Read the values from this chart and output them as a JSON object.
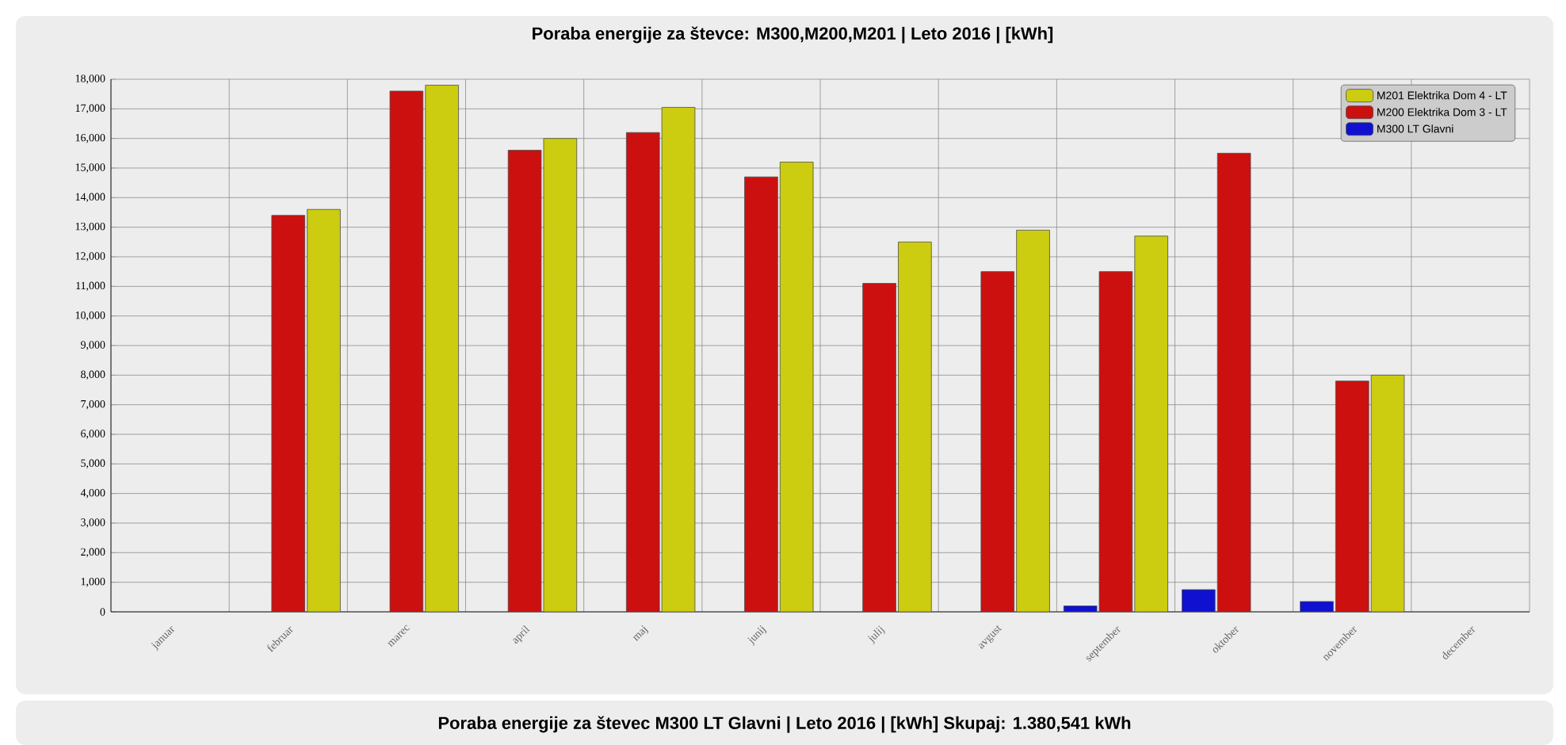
{
  "chart_data": {
    "type": "bar",
    "title": "Poraba energije za števce: M300,M200,M201 | Leto 2016 | [kWh]",
    "annotations": [
      "Poraba energije za števec M300 LT Glavni | Leto 2016 | [kWh] Skupaj: 1.380,541 kWh"
    ],
    "categories": [
      "januar",
      "februar",
      "marec",
      "april",
      "maj",
      "junij",
      "julij",
      "avgust",
      "september",
      "oktober",
      "november",
      "december"
    ],
    "series": [
      {
        "name": "M300 LT Glavni",
        "color": "#1010d0",
        "values": [
          null,
          null,
          null,
          null,
          null,
          null,
          null,
          null,
          200,
          750,
          350,
          null
        ]
      },
      {
        "name": "M200 Elektrika Dom 3 - LT",
        "color": "#cc1010",
        "values": [
          null,
          13400,
          17600,
          15600,
          16200,
          14700,
          11100,
          11500,
          11500,
          15500,
          7800,
          null
        ]
      },
      {
        "name": "M201 Elektrika Dom 4 - LT",
        "color": "#cccc10",
        "values": [
          null,
          13600,
          17800,
          16000,
          17050,
          15200,
          12500,
          12900,
          12700,
          null,
          8000,
          null
        ]
      }
    ],
    "ylim": [
      0,
      18000
    ],
    "yticks": [
      {
        "value": 0,
        "label": "0"
      },
      {
        "value": 1000,
        "label": "1,000"
      },
      {
        "value": 2000,
        "label": "2,000"
      },
      {
        "value": 3000,
        "label": "3,000"
      },
      {
        "value": 4000,
        "label": "4,000"
      },
      {
        "value": 5000,
        "label": "5,000"
      },
      {
        "value": 6000,
        "label": "6,000"
      },
      {
        "value": 7000,
        "label": "7,000"
      },
      {
        "value": 8000,
        "label": "8,000"
      },
      {
        "value": 9000,
        "label": "9,000"
      },
      {
        "value": 10000,
        "label": "10,000"
      },
      {
        "value": 11000,
        "label": "11,000"
      },
      {
        "value": 12000,
        "label": "12,000"
      },
      {
        "value": 13000,
        "label": "13,000"
      },
      {
        "value": 14000,
        "label": "14,000"
      },
      {
        "value": 15000,
        "label": "15,000"
      },
      {
        "value": 16000,
        "label": "16,000"
      },
      {
        "value": 17000,
        "label": "17,000"
      },
      {
        "value": 18000,
        "label": "18,000"
      }
    ],
    "grid": true,
    "legend": "top right"
  }
}
